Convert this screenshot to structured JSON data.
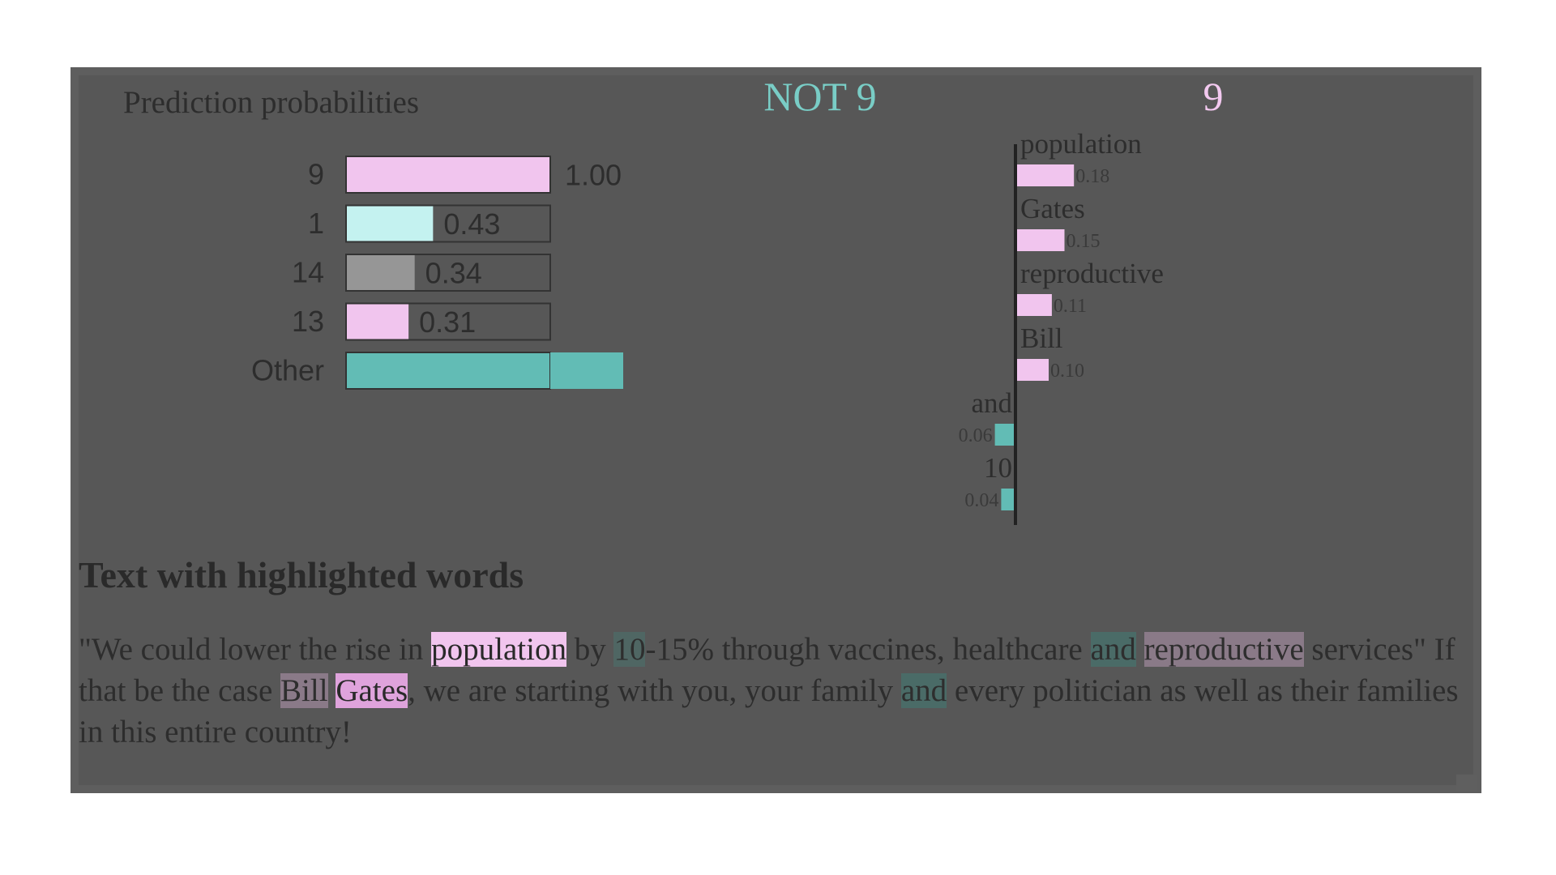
{
  "chart_data": [
    {
      "type": "bar",
      "title": "Prediction probabilities",
      "categories": [
        "9",
        "1",
        "14",
        "13",
        "Other"
      ],
      "values": [
        1.0,
        0.43,
        0.34,
        0.31,
        1.0
      ],
      "value_labels": [
        "1.00",
        "0.43",
        "0.34",
        "0.31",
        ""
      ],
      "colors": [
        "#f1c5ee",
        "#c4f2f0",
        "#969696",
        "#f1c5ee",
        "#62bcb5"
      ],
      "xlim": [
        0,
        1
      ],
      "orientation": "horizontal"
    },
    {
      "type": "bar",
      "class_labels": {
        "negative": "NOT 9",
        "positive": "9"
      },
      "categories": [
        "population",
        "Gates",
        "reproductive",
        "Bill",
        "and",
        "10"
      ],
      "values": [
        0.18,
        0.15,
        0.11,
        0.1,
        -0.06,
        -0.04
      ],
      "value_labels": [
        "0.18",
        "0.15",
        "0.11",
        "0.10",
        "0.06",
        "0.04"
      ],
      "colors": {
        "positive": "#f1c5ee",
        "negative": "#62bcb5"
      },
      "orientation": "horizontal"
    }
  ],
  "text_section": {
    "heading": "Text with highlighted words",
    "tokens": [
      {
        "t": "\"We could lower the rise in "
      },
      {
        "t": "population",
        "hl": "population"
      },
      {
        "t": " by "
      },
      {
        "t": "10",
        "hl": "ten"
      },
      {
        "t": "-15% through vaccines, healthcare "
      },
      {
        "t": "and",
        "hl": "and"
      },
      {
        "t": " "
      },
      {
        "t": "reproductive",
        "hl": "repro"
      },
      {
        "t": " services\" If that be the case "
      },
      {
        "t": "Bill",
        "hl": "bill"
      },
      {
        "t": " "
      },
      {
        "t": "Gates",
        "hl": "gates"
      },
      {
        "t": ", we are starting with you, your family "
      },
      {
        "t": "and",
        "hl": "and"
      },
      {
        "t": " every politician as well as their families in this entire country!"
      }
    ]
  }
}
